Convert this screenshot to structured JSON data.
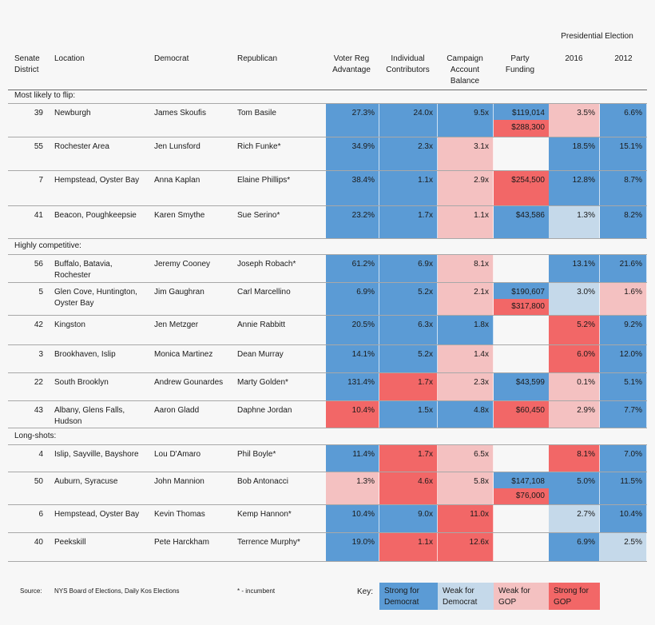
{
  "colors": {
    "strong_dem": "#5b9bd5",
    "weak_dem": "#c5d9ea",
    "weak_gop": "#f4c1c1",
    "strong_gop": "#f26767",
    "neutral": "#f7f7f7"
  },
  "header": {
    "presidential_election": "Presidential Election",
    "senate_district": "Senate District",
    "location": "Location",
    "democrat": "Democrat",
    "republican": "Republican",
    "voter_reg": "Voter Reg Advantage",
    "individual": "Individual Contributors",
    "campaign": "Campaign Account Balance",
    "party": "Party Funding",
    "y2016": "2016",
    "y2012": "2012"
  },
  "sections": [
    {
      "title": "Most likely to flip:",
      "rows": [
        {
          "district": "39",
          "location": "Newburgh",
          "democrat": "James Skoufis",
          "republican": "Tom Basile",
          "voter": "27.3%",
          "voter_c": "strong_dem",
          "indiv": "24.0x",
          "indiv_c": "strong_dem",
          "camp": "9.5x",
          "camp_c": "strong_dem",
          "party": "$119,014",
          "party_c": "strong_dem",
          "party2": "$288,300",
          "party2_c": "strong_gop",
          "p2016": "3.5%",
          "p2016_c": "weak_gop",
          "p2012": "6.6%",
          "p2012_c": "strong_dem"
        },
        {
          "district": "55",
          "location": "Rochester Area",
          "democrat": "Jen Lunsford",
          "republican": "Rich Funke*",
          "voter": "34.9%",
          "voter_c": "strong_dem",
          "indiv": "2.3x",
          "indiv_c": "strong_dem",
          "camp": "3.1x",
          "camp_c": "weak_gop",
          "party": "",
          "party_c": "neutral",
          "p2016": "18.5%",
          "p2016_c": "strong_dem",
          "p2012": "15.1%",
          "p2012_c": "strong_dem"
        },
        {
          "district": "7",
          "location": "Hempstead, Oyster Bay",
          "democrat": "Anna Kaplan",
          "republican": "Elaine Phillips*",
          "voter": "38.4%",
          "voter_c": "strong_dem",
          "indiv": "1.1x",
          "indiv_c": "strong_dem",
          "camp": "2.9x",
          "camp_c": "weak_gop",
          "party": "$254,500",
          "party_c": "strong_gop",
          "p2016": "12.8%",
          "p2016_c": "strong_dem",
          "p2012": "8.7%",
          "p2012_c": "strong_dem"
        },
        {
          "district": "41",
          "location": "Beacon, Poughkeepsie",
          "democrat": "Karen Smythe",
          "republican": "Sue Serino*",
          "voter": "23.2%",
          "voter_c": "strong_dem",
          "indiv": "1.7x",
          "indiv_c": "strong_dem",
          "camp": "1.1x",
          "camp_c": "weak_gop",
          "party": "$43,586",
          "party_c": "strong_dem",
          "p2016": "1.3%",
          "p2016_c": "weak_dem",
          "p2012": "8.2%",
          "p2012_c": "strong_dem"
        }
      ]
    },
    {
      "title": "Highly competitive:",
      "rows": [
        {
          "district": "56",
          "location": "Buffalo, Batavia, Rochester",
          "democrat": "Jeremy Cooney",
          "republican": "Joseph Robach*",
          "voter": "61.2%",
          "voter_c": "strong_dem",
          "indiv": "6.9x",
          "indiv_c": "strong_dem",
          "camp": "8.1x",
          "camp_c": "weak_gop",
          "party": "",
          "party_c": "neutral",
          "p2016": "13.1%",
          "p2016_c": "strong_dem",
          "p2012": "21.6%",
          "p2012_c": "strong_dem"
        },
        {
          "district": "5",
          "location": "Glen Cove, Huntington, Oyster Bay",
          "democrat": "Jim Gaughran",
          "republican": "Carl Marcellino",
          "voter": "6.9%",
          "voter_c": "strong_dem",
          "indiv": "5.2x",
          "indiv_c": "strong_dem",
          "camp": "2.1x",
          "camp_c": "weak_gop",
          "party": "$190,607",
          "party_c": "strong_dem",
          "party2": "$317,800",
          "party2_c": "strong_gop",
          "p2016": "3.0%",
          "p2016_c": "weak_dem",
          "p2012": "1.6%",
          "p2012_c": "weak_gop"
        },
        {
          "district": "42",
          "location": "Kingston",
          "democrat": "Jen Metzger",
          "republican": "Annie Rabbitt",
          "voter": "20.5%",
          "voter_c": "strong_dem",
          "indiv": "6.3x",
          "indiv_c": "strong_dem",
          "camp": "1.8x",
          "camp_c": "strong_dem",
          "party": "",
          "party_c": "neutral",
          "p2016": "5.2%",
          "p2016_c": "strong_gop",
          "p2012": "9.2%",
          "p2012_c": "strong_dem"
        },
        {
          "district": "3",
          "location": "Brookhaven, Islip",
          "democrat": "Monica Martinez",
          "republican": "Dean Murray",
          "voter": "14.1%",
          "voter_c": "strong_dem",
          "indiv": "5.2x",
          "indiv_c": "strong_dem",
          "camp": "1.4x",
          "camp_c": "weak_gop",
          "party": "",
          "party_c": "neutral",
          "p2016": "6.0%",
          "p2016_c": "strong_gop",
          "p2012": "12.0%",
          "p2012_c": "strong_dem"
        },
        {
          "district": "22",
          "location": "South Brooklyn",
          "democrat": "Andrew Gounardes",
          "republican": "Marty Golden*",
          "voter": "131.4%",
          "voter_c": "strong_dem",
          "indiv": "1.7x",
          "indiv_c": "strong_gop",
          "camp": "2.3x",
          "camp_c": "weak_gop",
          "party": "$43,599",
          "party_c": "strong_dem",
          "p2016": "0.1%",
          "p2016_c": "weak_gop",
          "p2012": "5.1%",
          "p2012_c": "strong_dem"
        },
        {
          "district": "43",
          "location": "Albany, Glens Falls, Hudson",
          "democrat": "Aaron Gladd",
          "republican": "Daphne Jordan",
          "voter": "10.4%",
          "voter_c": "strong_gop",
          "indiv": "1.5x",
          "indiv_c": "strong_dem",
          "camp": "4.8x",
          "camp_c": "strong_dem",
          "party": "$60,450",
          "party_c": "strong_gop",
          "p2016": "2.9%",
          "p2016_c": "weak_gop",
          "p2012": "7.7%",
          "p2012_c": "strong_dem"
        }
      ]
    },
    {
      "title": "Long-shots:",
      "rows": [
        {
          "district": "4",
          "location": "Islip, Sayville, Bayshore",
          "democrat": "Lou D'Amaro",
          "republican": "Phil Boyle*",
          "voter": "11.4%",
          "voter_c": "strong_dem",
          "indiv": "1.7x",
          "indiv_c": "strong_gop",
          "camp": "6.5x",
          "camp_c": "weak_gop",
          "party": "",
          "party_c": "neutral",
          "p2016": "8.1%",
          "p2016_c": "strong_gop",
          "p2012": "7.0%",
          "p2012_c": "strong_dem"
        },
        {
          "district": "50",
          "location": "Auburn, Syracuse",
          "democrat": "John Mannion",
          "republican": "Bob Antonacci",
          "voter": "1.3%",
          "voter_c": "weak_gop",
          "indiv": "4.6x",
          "indiv_c": "strong_gop",
          "camp": "5.8x",
          "camp_c": "weak_gop",
          "party": "$147,108",
          "party_c": "strong_dem",
          "party2": "$76,000",
          "party2_c": "strong_gop",
          "p2016": "5.0%",
          "p2016_c": "strong_dem",
          "p2012": "11.5%",
          "p2012_c": "strong_dem"
        },
        {
          "district": "6",
          "location": "Hempstead, Oyster Bay",
          "democrat": "Kevin Thomas",
          "republican": "Kemp Hannon*",
          "voter": "10.4%",
          "voter_c": "strong_dem",
          "indiv": "9.0x",
          "indiv_c": "strong_dem",
          "camp": "11.0x",
          "camp_c": "strong_gop",
          "party": "",
          "party_c": "neutral",
          "p2016": "2.7%",
          "p2016_c": "weak_dem",
          "p2012": "10.4%",
          "p2012_c": "strong_dem"
        },
        {
          "district": "40",
          "location": "Peekskill",
          "democrat": "Pete Harckham",
          "republican": "Terrence Murphy*",
          "voter": "19.0%",
          "voter_c": "strong_dem",
          "indiv": "1.1x",
          "indiv_c": "strong_gop",
          "camp": "12.6x",
          "camp_c": "strong_gop",
          "party": "",
          "party_c": "neutral",
          "p2016": "6.9%",
          "p2016_c": "strong_dem",
          "p2012": "2.5%",
          "p2012_c": "weak_dem"
        }
      ]
    }
  ],
  "footer": {
    "source_label": "Source:",
    "source_text": "NYS Board of Elections, Daily Kos Elections",
    "incumbent_note": "* - incumbent",
    "key_label": "Key:",
    "key_items": [
      {
        "label": "Strong for Democrat",
        "color": "strong_dem"
      },
      {
        "label": "Weak for Democrat",
        "color": "weak_dem"
      },
      {
        "label": "Weak for GOP",
        "color": "weak_gop"
      },
      {
        "label": "Strong for GOP",
        "color": "strong_gop"
      }
    ]
  }
}
